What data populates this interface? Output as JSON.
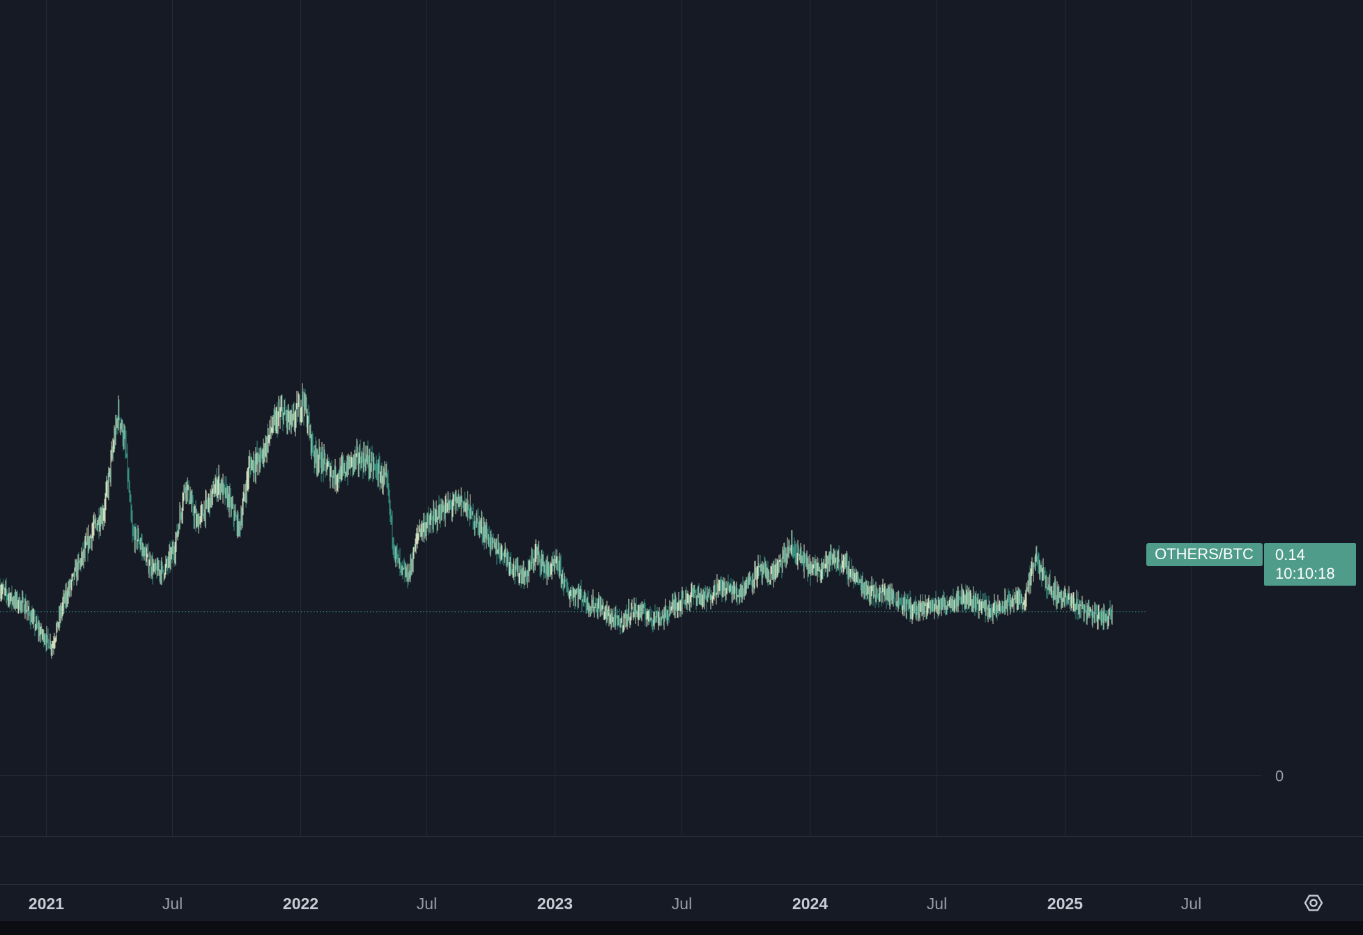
{
  "chart_data": {
    "type": "line",
    "style": "candlestick",
    "symbol": "OTHERS/BTC",
    "last_price": "0.14",
    "countdown": "10:10:18",
    "y_tick_labels": [
      "0"
    ],
    "y_ticks": [
      0
    ],
    "ylim": [
      0,
      0.34
    ],
    "grid": true,
    "x_ticks": [
      {
        "label": "2021",
        "date": "2021-01-01",
        "major": true
      },
      {
        "label": "Jul",
        "date": "2021-07-01",
        "major": false
      },
      {
        "label": "2022",
        "date": "2022-01-01",
        "major": true
      },
      {
        "label": "Jul",
        "date": "2022-07-01",
        "major": false
      },
      {
        "label": "2023",
        "date": "2023-01-01",
        "major": true
      },
      {
        "label": "Jul",
        "date": "2023-07-01",
        "major": false
      },
      {
        "label": "2024",
        "date": "2024-01-01",
        "major": true
      },
      {
        "label": "Jul",
        "date": "2024-07-01",
        "major": false
      },
      {
        "label": "2025",
        "date": "2025-01-01",
        "major": true
      },
      {
        "label": "Jul",
        "date": "2025-07-01",
        "major": false
      }
    ],
    "x": [
      "2020-10-15",
      "2020-11-15",
      "2020-12-01",
      "2020-12-20",
      "2021-01-10",
      "2021-01-25",
      "2021-02-10",
      "2021-02-25",
      "2021-03-10",
      "2021-03-25",
      "2021-04-05",
      "2021-04-15",
      "2021-04-25",
      "2021-05-05",
      "2021-05-15",
      "2021-05-25",
      "2021-06-05",
      "2021-06-20",
      "2021-07-05",
      "2021-07-20",
      "2021-08-05",
      "2021-08-20",
      "2021-09-05",
      "2021-09-20",
      "2021-10-05",
      "2021-10-20",
      "2021-11-05",
      "2021-11-20",
      "2021-12-05",
      "2021-12-20",
      "2022-01-05",
      "2022-01-20",
      "2022-02-05",
      "2022-02-20",
      "2022-03-05",
      "2022-03-20",
      "2022-04-05",
      "2022-04-20",
      "2022-05-05",
      "2022-05-15",
      "2022-05-25",
      "2022-06-05",
      "2022-06-20",
      "2022-07-05",
      "2022-07-20",
      "2022-08-05",
      "2022-08-20",
      "2022-09-05",
      "2022-09-20",
      "2022-10-05",
      "2022-10-20",
      "2022-11-05",
      "2022-11-20",
      "2022-12-05",
      "2022-12-20",
      "2023-01-05",
      "2023-01-20",
      "2023-02-05",
      "2023-02-20",
      "2023-03-05",
      "2023-03-20",
      "2023-04-05",
      "2023-04-20",
      "2023-05-05",
      "2023-05-20",
      "2023-06-05",
      "2023-06-20",
      "2023-07-05",
      "2023-07-20",
      "2023-08-05",
      "2023-08-20",
      "2023-09-05",
      "2023-09-20",
      "2023-10-05",
      "2023-10-20",
      "2023-11-05",
      "2023-11-20",
      "2023-12-05",
      "2023-12-20",
      "2024-01-05",
      "2024-01-20",
      "2024-02-05",
      "2024-02-20",
      "2024-03-05",
      "2024-03-20",
      "2024-04-05",
      "2024-04-20",
      "2024-05-05",
      "2024-05-20",
      "2024-06-05",
      "2024-06-20",
      "2024-07-05",
      "2024-07-20",
      "2024-08-05",
      "2024-08-20",
      "2024-09-05",
      "2024-09-20",
      "2024-10-05",
      "2024-10-20",
      "2024-11-05",
      "2024-11-20",
      "2024-12-05",
      "2024-12-20",
      "2025-01-05",
      "2025-01-20",
      "2025-02-05",
      "2025-02-20",
      "2025-03-01",
      "2025-03-10"
    ],
    "y": [
      0.165,
      0.15,
      0.145,
      0.125,
      0.11,
      0.145,
      0.17,
      0.19,
      0.21,
      0.225,
      0.27,
      0.31,
      0.28,
      0.205,
      0.2,
      0.185,
      0.175,
      0.175,
      0.195,
      0.25,
      0.215,
      0.23,
      0.25,
      0.235,
      0.21,
      0.265,
      0.27,
      0.295,
      0.31,
      0.3,
      0.322,
      0.275,
      0.265,
      0.255,
      0.26,
      0.27,
      0.27,
      0.26,
      0.25,
      0.195,
      0.175,
      0.17,
      0.21,
      0.215,
      0.225,
      0.23,
      0.235,
      0.22,
      0.21,
      0.195,
      0.19,
      0.175,
      0.17,
      0.19,
      0.175,
      0.18,
      0.155,
      0.155,
      0.145,
      0.145,
      0.135,
      0.13,
      0.14,
      0.14,
      0.135,
      0.135,
      0.145,
      0.15,
      0.155,
      0.15,
      0.16,
      0.16,
      0.155,
      0.165,
      0.175,
      0.17,
      0.18,
      0.195,
      0.185,
      0.175,
      0.18,
      0.185,
      0.18,
      0.17,
      0.16,
      0.155,
      0.155,
      0.15,
      0.145,
      0.14,
      0.145,
      0.145,
      0.148,
      0.152,
      0.15,
      0.145,
      0.14,
      0.145,
      0.15,
      0.15,
      0.185,
      0.165,
      0.155,
      0.15,
      0.145,
      0.14,
      0.135,
      0.135,
      0.14
    ]
  },
  "settings_icon": "settings-hexagon-icon",
  "colors": {
    "background": "#0b0d12",
    "plot_background": "#161a25",
    "grid": "#252a36",
    "candle_up": "#e6f2cf",
    "candle_down": "#3a9e8c",
    "label_bg": "#4f9c8a",
    "axis_text": "#c9ccd4",
    "axis_text_dim": "#9a9ea8"
  }
}
